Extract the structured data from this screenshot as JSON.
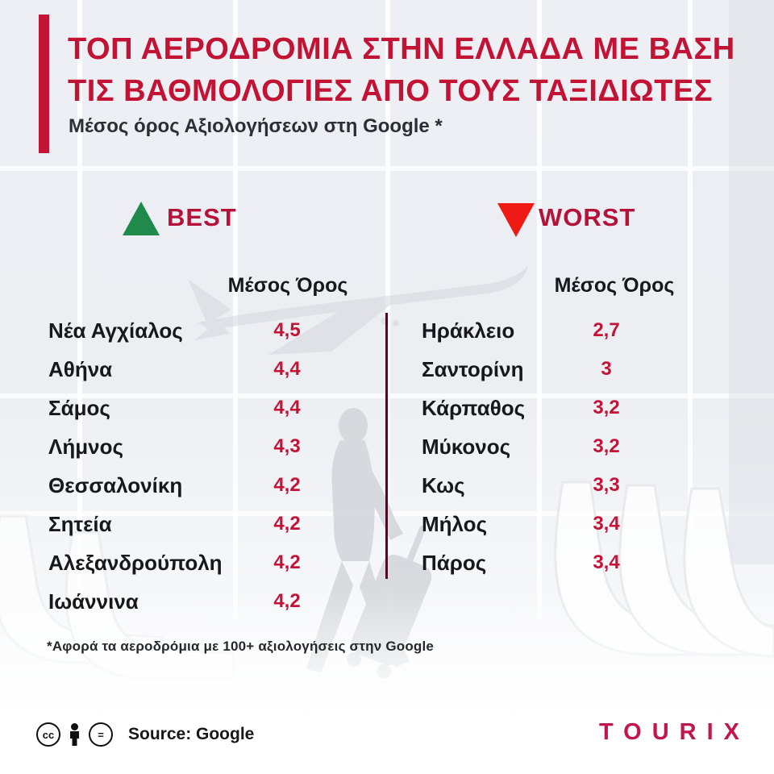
{
  "header": {
    "title_line1": "ΤΟΠ ΑΕΡΟΔΡΟΜΙΑ ΣΤΗΝ ΕΛΛΑΔΑ ΜΕ ΒΑΣΗ",
    "title_line2": "ΤΙΣ ΒΑΘΜΟΛΟΓΙΕΣ ΑΠΟ ΤΟΥΣ ΤΑΞΙΔΙΩΤΕΣ",
    "subtitle": "Μέσος όρος Αξιολογήσεων στη Google *"
  },
  "columns": {
    "best": {
      "label": "BEST",
      "value_header": "Μέσος Όρος",
      "rows": [
        {
          "name": "Νέα Αγχίαλος",
          "value": "4,5"
        },
        {
          "name": "Αθήνα",
          "value": "4,4"
        },
        {
          "name": "Σάμος",
          "value": "4,4"
        },
        {
          "name": "Λήμνος",
          "value": "4,3"
        },
        {
          "name": "Θεσσαλονίκη",
          "value": "4,2"
        },
        {
          "name": "Σητεία",
          "value": "4,2"
        },
        {
          "name": "Αλεξανδρούπολη",
          "value": "4,2"
        },
        {
          "name": "Ιωάννινα",
          "value": "4,2"
        }
      ]
    },
    "worst": {
      "label": "WORST",
      "value_header": "Μέσος Όρος",
      "rows": [
        {
          "name": "Ηράκλειο",
          "value": "2,7"
        },
        {
          "name": "Σαντορίνη",
          "value": "3"
        },
        {
          "name": "Κάρπαθος",
          "value": "3,2"
        },
        {
          "name": "Μύκονος",
          "value": "3,2"
        },
        {
          "name": "Κως",
          "value": "3,3"
        },
        {
          "name": "Μήλος",
          "value": "3,4"
        },
        {
          "name": "Πάρος",
          "value": "3,4"
        }
      ]
    }
  },
  "footnote": "*Αφορά τα αεροδρόμια με 100+ αξιολογήσεις στην Google",
  "footer": {
    "cc_text": "cc",
    "equals_text": "=",
    "source": "Source: Google",
    "brand": "TOURIX"
  },
  "colors": {
    "title": "#C21335",
    "rating_value": "#C31437",
    "airport_name": "#17171C",
    "best_triangle": "#1F8A4C",
    "worst_triangle": "#EF1A14",
    "legend_label": "#B5123A",
    "divider": "#4A0D24",
    "accent_bar": "#C21335",
    "brand": "#C2174A"
  },
  "chart_data": {
    "type": "table",
    "title": "ΤΟΠ ΑΕΡΟΔΡΟΜΙΑ ΣΤΗΝ ΕΛΛΑΔΑ ΜΕ ΒΑΣΗ ΤΙΣ ΒΑΘΜΟΛΟΓΙΕΣ ΑΠΟ ΤΟΥΣ ΤΑΞΙΔΙΩΤΕΣ",
    "subtitle": "Μέσος όρος Αξιολογήσεων στη Google *",
    "note": "*Αφορά τα αεροδρόμια με 100+ αξιολογήσεις στην Google",
    "source": "Google",
    "groups": [
      {
        "name": "BEST",
        "column": "Μέσος Όρος",
        "airports": [
          "Νέα Αγχίαλος",
          "Αθήνα",
          "Σάμος",
          "Λήμνος",
          "Θεσσαλονίκη",
          "Σητεία",
          "Αλεξανδρούπολη",
          "Ιωάννινα"
        ],
        "values": [
          4.5,
          4.4,
          4.4,
          4.3,
          4.2,
          4.2,
          4.2,
          4.2
        ]
      },
      {
        "name": "WORST",
        "column": "Μέσος Όρος",
        "airports": [
          "Ηράκλειο",
          "Σαντορίνη",
          "Κάρπαθος",
          "Μύκονος",
          "Κως",
          "Μήλος",
          "Πάρος"
        ],
        "values": [
          2.7,
          3,
          3.2,
          3.2,
          3.3,
          3.4,
          3.4
        ]
      }
    ]
  }
}
